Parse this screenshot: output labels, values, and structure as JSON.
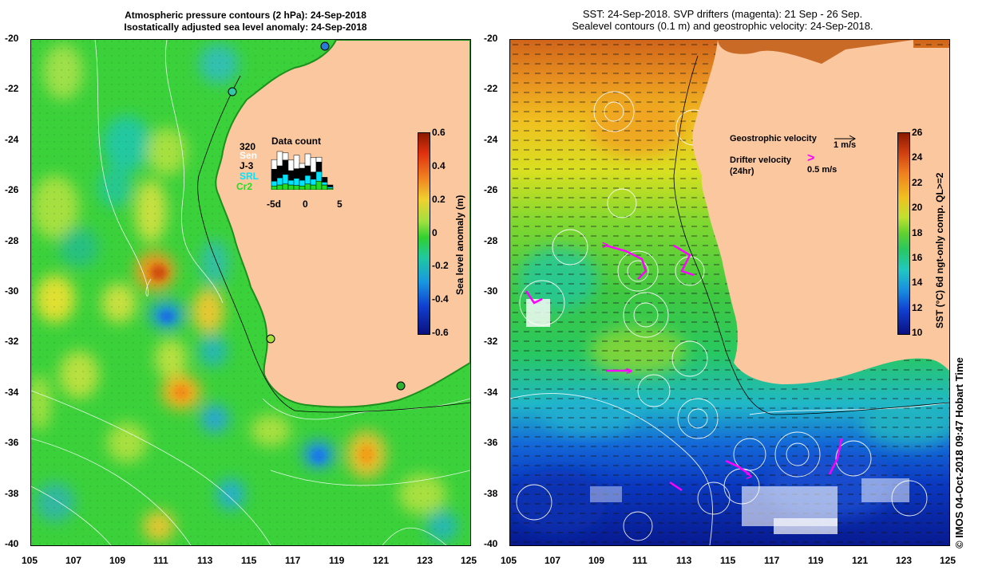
{
  "left_panel": {
    "title_line1": "Atmospheric pressure contours (2 hPa): 24-Sep-2018",
    "title_line2": "Isostatically adjusted sea level anomaly: 24-Sep-2018",
    "colorbar_label": "Sea level anomaly (m)",
    "colorbar_ticks": [
      "0.6",
      "0.4",
      "0.2",
      "0",
      "-0.2",
      "-0.4",
      "-0.6"
    ],
    "colors": {
      "sea": "#3bd13b",
      "land": "#fac79f"
    }
  },
  "right_panel": {
    "title_line1": "SST: 24-Sep-2018. SVP drifters (magenta): 21 Sep - 26 Sep.",
    "title_line2": "Sealevel contours (0.1 m) and geostrophic velocity: 24-Sep-2018.",
    "colorbar_label": "SST (°C) 6d ngt-only comp. QL>=2",
    "colorbar_ticks": [
      "26",
      "24",
      "22",
      "20",
      "18",
      "16",
      "14",
      "12",
      "10"
    ],
    "legend": {
      "geostrophic_label": "Geostrophic velocity",
      "geostrophic_scale": "1 m/s",
      "drifter_label": "Drifter velocity",
      "drifter_sub": "(24hr)",
      "drifter_scale": "0.5 m/s",
      "drifter_marker": ">"
    },
    "colors": {
      "drifter": "#ff00ff",
      "land": "#fac79f"
    }
  },
  "data_count": {
    "title": "Data count",
    "max_label": "320",
    "satellites": [
      "Sen",
      "J-3",
      "SRL",
      "Cr2"
    ],
    "sat_colors": [
      "#ffffff",
      "#000000",
      "#00e5ff",
      "#22dd22"
    ],
    "axis_labels": [
      "-5d",
      "0",
      "5"
    ],
    "bars": [
      [
        20,
        25,
        10,
        8
      ],
      [
        30,
        25,
        15,
        10
      ],
      [
        15,
        30,
        20,
        12
      ],
      [
        22,
        20,
        10,
        10
      ],
      [
        28,
        20,
        15,
        9
      ],
      [
        10,
        25,
        12,
        8
      ],
      [
        25,
        20,
        18,
        12
      ],
      [
        30,
        15,
        12,
        10
      ],
      [
        10,
        20,
        20,
        18
      ],
      [
        0,
        10,
        6,
        10
      ],
      [
        0,
        4,
        3,
        3
      ]
    ]
  },
  "axes": {
    "lat_ticks": [
      "-20",
      "-22",
      "-24",
      "-26",
      "-28",
      "-30",
      "-32",
      "-34",
      "-36",
      "-38",
      "-40"
    ],
    "lon_ticks": [
      "105",
      "107",
      "109",
      "111",
      "113",
      "115",
      "117",
      "119",
      "121",
      "123",
      "125"
    ]
  },
  "credit": "©  IMOS 04-Oct-2018 09:47 Hobart Time"
}
